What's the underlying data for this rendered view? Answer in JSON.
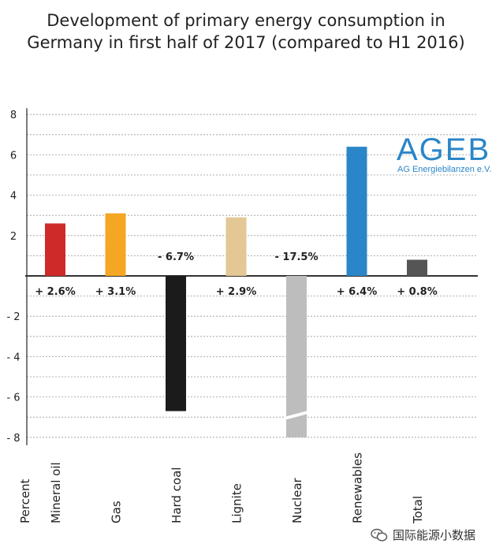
{
  "title_line1": "Development of primary energy consumption in",
  "title_line2": "Germany in first half of 2017 (compared to H1 2016)",
  "logo": {
    "main": "AGEB",
    "sub": "AG Energiebilanzen e.V.",
    "color": "#2a86c8"
  },
  "watermark": {
    "text": "国际能源小数据",
    "icon": "wechat-icon"
  },
  "chart_data": {
    "type": "bar",
    "ylabel": "Percent",
    "ylim": [
      -8,
      8
    ],
    "yticks": [
      8,
      6,
      4,
      2,
      -2,
      -4,
      -6,
      -8
    ],
    "categories": [
      "Mineral oil",
      "Gas",
      "Hard coal",
      "Lignite",
      "Nuclear",
      "Renewables",
      "Total"
    ],
    "values": [
      2.6,
      3.1,
      -6.7,
      2.9,
      -17.5,
      6.4,
      0.8
    ],
    "data_labels": [
      "+ 2.6%",
      "+ 3.1%",
      "- 6.7%",
      "+ 2.9%",
      "- 17.5%",
      "+ 6.4%",
      "+ 0.8%"
    ],
    "colors": [
      "#cf2a2a",
      "#f5a623",
      "#1b1b1b",
      "#e3c795",
      "#bdbdbd",
      "#2a86c8",
      "#555555"
    ],
    "truncated": [
      false,
      false,
      false,
      false,
      true,
      false,
      false
    ],
    "grid": true
  }
}
